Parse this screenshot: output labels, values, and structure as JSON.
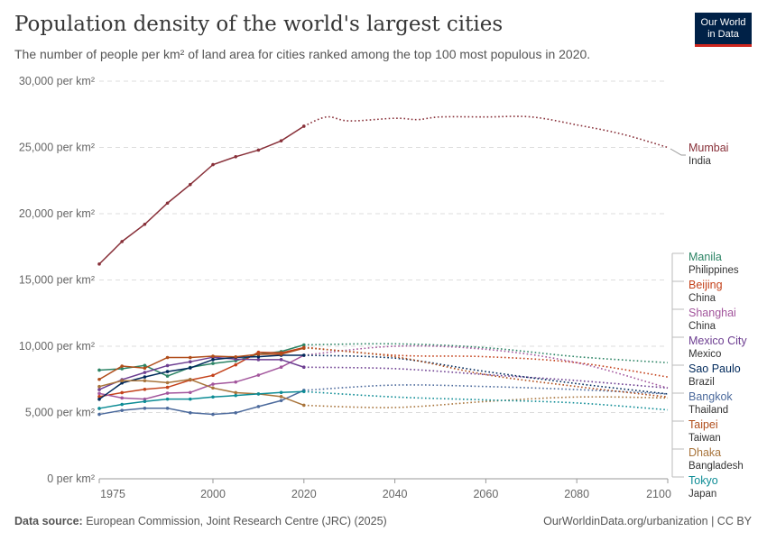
{
  "title": "Population density of the world's largest cities",
  "subtitle": "The number of people per km² of land area for cities ranked among the top 100 most populous in 2020.",
  "logo": {
    "line1": "Our World",
    "line2": "in Data"
  },
  "footer": {
    "source_label": "Data source:",
    "source": "European Commission, Joint Research Centre (JRC) (2025)",
    "url": "OurWorldinData.org/urbanization | CC BY"
  },
  "chart_data": {
    "type": "line",
    "title": "Population density of the world's largest cities",
    "ylim": [
      0,
      30000
    ],
    "xlim": [
      1975,
      2100
    ],
    "y_ticks": [
      {
        "v": 0,
        "label": "0 per km²"
      },
      {
        "v": 5000,
        "label": "5,000 per km²"
      },
      {
        "v": 10000,
        "label": "10,000 per km²"
      },
      {
        "v": 15000,
        "label": "15,000 per km²"
      },
      {
        "v": 20000,
        "label": "20,000 per km²"
      },
      {
        "v": 25000,
        "label": "25,000 per km²"
      },
      {
        "v": 30000,
        "label": "30,000 per km²"
      }
    ],
    "x_ticks": [
      1975,
      2000,
      2020,
      2040,
      2060,
      2080,
      2100
    ],
    "grid": "horizontal dashed",
    "legend": "right, end labels",
    "observed_years": [
      1975,
      1980,
      1985,
      1990,
      1995,
      2000,
      2005,
      2010,
      2015,
      2020
    ],
    "projected_years": [
      2020,
      2040,
      2060,
      2080,
      2100
    ],
    "projection_style": "dotted",
    "series": [
      {
        "name": "Mumbai",
        "country": "India",
        "color": "#883039",
        "observed": [
          16200,
          17900,
          19200,
          20800,
          22200,
          23700,
          24300,
          24800,
          25500,
          26600
        ],
        "projected_years": [
          2020,
          2025,
          2030,
          2040,
          2045,
          2050,
          2060,
          2070,
          2080,
          2090,
          2100
        ],
        "projected": [
          26600,
          27300,
          27000,
          27200,
          27100,
          27300,
          27300,
          27300,
          26700,
          26000,
          25000
        ]
      },
      {
        "name": "Manila",
        "country": "Philippines",
        "color": "#2c8465",
        "observed": [
          8200,
          8300,
          8550,
          7750,
          8400,
          8700,
          8900,
          9400,
          9600,
          10100
        ],
        "projected": [
          10100,
          10180,
          9890,
          9210,
          8760
        ]
      },
      {
        "name": "Beijing",
        "country": "China",
        "color": "#c4421b",
        "observed": [
          6200,
          6500,
          6750,
          6900,
          7450,
          7800,
          8600,
          9550,
          9500,
          9900
        ],
        "projected": [
          9930,
          9320,
          9210,
          8760,
          7680
        ]
      },
      {
        "name": "Shanghai",
        "country": "China",
        "color": "#a2559c",
        "observed": [
          6440,
          6100,
          6010,
          6460,
          6510,
          7140,
          7300,
          7820,
          8420,
          9320
        ],
        "projected": [
          9320,
          10000,
          9770,
          8760,
          6850
        ]
      },
      {
        "name": "Mexico City",
        "country": "Mexico",
        "color": "#6d3e91",
        "observed": [
          6730,
          7480,
          8020,
          8540,
          8830,
          9170,
          9030,
          8990,
          8990,
          8420
        ],
        "projected": [
          8420,
          8310,
          7860,
          7410,
          6850
        ]
      },
      {
        "name": "Sao Paulo",
        "country": "Brazil",
        "color": "#00295b",
        "observed": [
          6000,
          7230,
          7680,
          8090,
          8360,
          8990,
          9170,
          9210,
          9320,
          9320
        ],
        "projected": [
          9320,
          9100,
          8090,
          7180,
          6400
        ]
      },
      {
        "name": "Bangkok",
        "country": "Thailand",
        "color": "#4c6a9c",
        "observed": [
          4860,
          5160,
          5320,
          5320,
          4980,
          4860,
          4980,
          5450,
          5900,
          6670
        ],
        "projected": [
          6670,
          7070,
          6960,
          6730,
          6400
        ]
      },
      {
        "name": "Taipei",
        "country": "Taiwan",
        "color": "#b04d1a",
        "observed": [
          7500,
          8500,
          8350,
          9150,
          9150,
          9250,
          9200,
          9400,
          9400,
          9850
        ],
        "projected": [
          9890,
          9210,
          7860,
          6960,
          6170
        ]
      },
      {
        "name": "Dhaka",
        "country": "Bangladesh",
        "color": "#a8743b",
        "observed": [
          6960,
          7400,
          7400,
          7250,
          7500,
          6850,
          6500,
          6400,
          6200,
          5550
        ],
        "projected": [
          5540,
          5380,
          5830,
          6170,
          6100
        ]
      },
      {
        "name": "Tokyo",
        "country": "Japan",
        "color": "#0d8c95",
        "observed": [
          5310,
          5610,
          5830,
          6010,
          6010,
          6170,
          6280,
          6400,
          6510,
          6580
        ],
        "projected": [
          6580,
          6170,
          5950,
          5720,
          5200
        ]
      }
    ]
  }
}
